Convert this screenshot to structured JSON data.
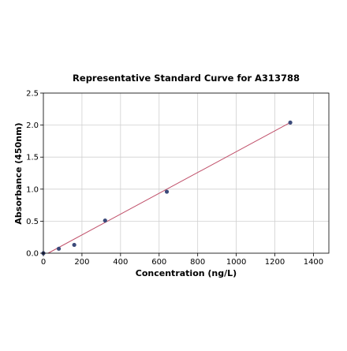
{
  "chart_data": {
    "type": "scatter",
    "title": "Representative Standard Curve for A313788",
    "xlabel": "Concentration (ng/L)",
    "ylabel": "Absorbance (450nm)",
    "xlim": [
      0,
      1480
    ],
    "ylim": [
      0,
      2.5
    ],
    "xticks": [
      0,
      200,
      400,
      600,
      800,
      1000,
      1200,
      1400
    ],
    "xtick_labels": [
      "0",
      "200",
      "400",
      "600",
      "800",
      "1000",
      "1200",
      "1400"
    ],
    "yticks": [
      0,
      0.5,
      1.0,
      1.5,
      2.0,
      2.5
    ],
    "ytick_labels": [
      "0.0",
      "0.5",
      "1.0",
      "1.5",
      "2.0",
      "2.5"
    ],
    "grid": true,
    "series": [
      {
        "x": [
          0,
          80,
          160,
          320,
          640,
          1280
        ],
        "y": [
          0.0,
          0.07,
          0.13,
          0.51,
          0.96,
          2.04
        ],
        "color": "#3b4a7a"
      }
    ],
    "fit_line": {
      "x": [
        0,
        1280
      ],
      "y": [
        -0.04,
        2.04
      ],
      "color": "#c0506a"
    },
    "colors": {
      "grid": "#d0d0d0",
      "axis": "#000000"
    }
  }
}
